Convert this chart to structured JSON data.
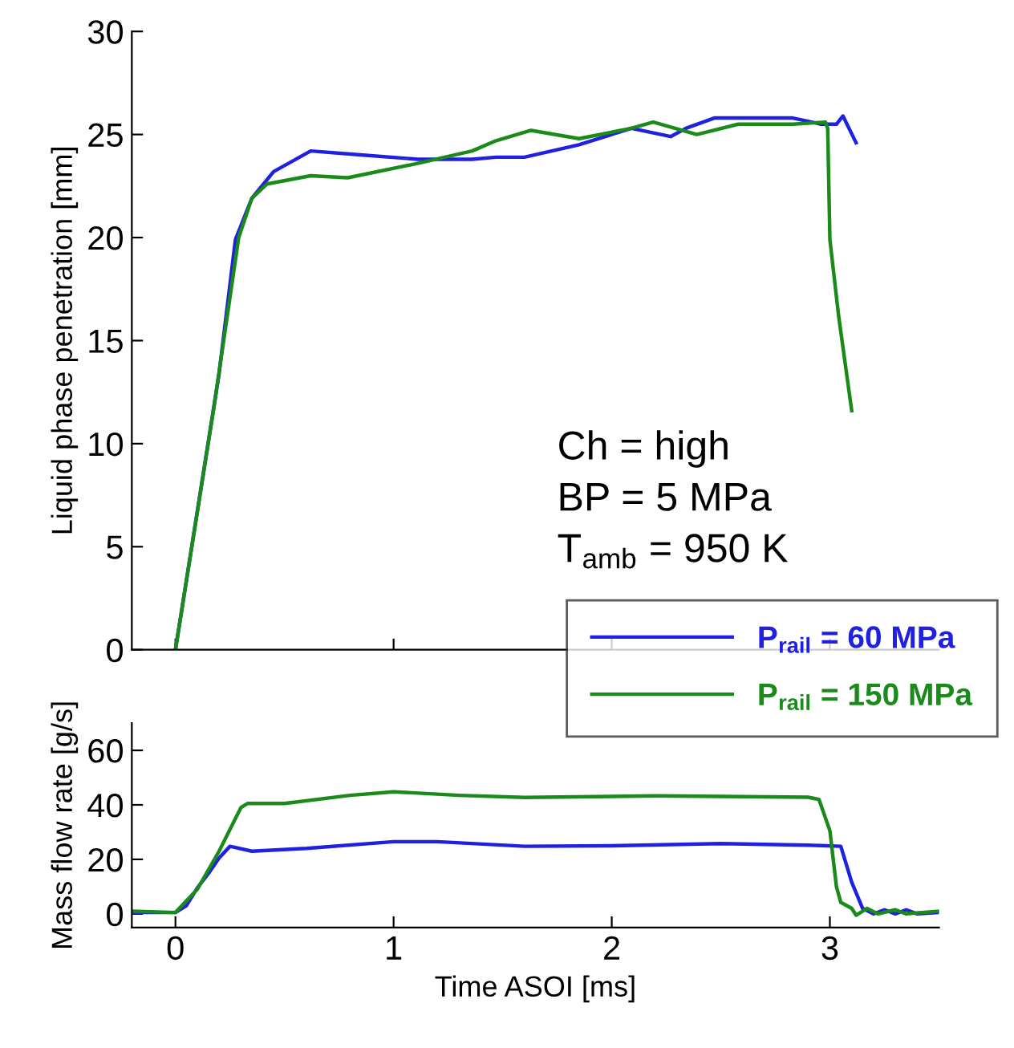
{
  "chart_data": [
    {
      "type": "line",
      "ylabel": "Liquid phase penetration [mm]",
      "xlim": [
        -0.2,
        3.5
      ],
      "xticks": [
        0,
        1,
        2,
        3
      ],
      "ylim": [
        0,
        30
      ],
      "yticks": [
        0,
        5,
        10,
        15,
        20,
        25,
        30
      ],
      "tick_labels": "y",
      "grid": false,
      "legend": "bottom right",
      "marker": "none",
      "line_style": "solid",
      "annotations": [
        "Ch = high",
        "BP = 5 MPa",
        "T$_{amb}$ = 950 K"
      ],
      "series": [
        {
          "name": "P$_{rail}$ = 60 MPa",
          "color": "#2020e0",
          "x": [
            0,
            0.2,
            0.275,
            0.35,
            0.45,
            0.62,
            0.86,
            1.11,
            1.36,
            1.47,
            1.6,
            1.85,
            2.09,
            2.27,
            2.34,
            2.47,
            2.83,
            2.96,
            3.03,
            3.06,
            3.12
          ],
          "values": [
            0,
            13.4,
            19.9,
            21.9,
            23.2,
            24.2,
            24.0,
            23.8,
            23.8,
            23.9,
            23.9,
            24.5,
            25.3,
            24.9,
            25.3,
            25.8,
            25.8,
            25.5,
            25.5,
            25.9,
            24.6
          ]
        },
        {
          "name": "P$_{rail}$ = 150 MPa",
          "color": "#1a8a1a",
          "x": [
            0,
            0.177,
            0.29,
            0.35,
            0.42,
            0.62,
            0.79,
            1.11,
            1.36,
            1.47,
            1.63,
            1.85,
            2.09,
            2.19,
            2.29,
            2.39,
            2.58,
            2.83,
            2.98,
            2.99,
            3.0,
            3.04,
            3.1
          ],
          "values": [
            0,
            11.8,
            20.0,
            21.9,
            22.6,
            23.0,
            22.9,
            23.6,
            24.2,
            24.7,
            25.2,
            24.8,
            25.3,
            25.6,
            25.3,
            25.0,
            25.5,
            25.5,
            25.6,
            25.3,
            19.9,
            16.2,
            11.6
          ]
        }
      ]
    },
    {
      "type": "line",
      "xlabel": "Time ASOI [ms]",
      "ylabel": "Mass flow rate [g/s]",
      "xlim": [
        -0.2,
        3.5
      ],
      "xticks": [
        0,
        1,
        2,
        3
      ],
      "ylim": [
        -5,
        70
      ],
      "yticks": [
        0,
        20,
        40,
        60
      ],
      "grid": false,
      "marker": "none",
      "line_style": "solid",
      "series": [
        {
          "color": "#2020e0",
          "x": [
            -0.2,
            -0.1,
            0,
            0.05,
            0.1,
            0.15,
            0.2,
            0.25,
            0.35,
            0.6,
            1.0,
            1.2,
            1.6,
            2.0,
            2.5,
            2.9,
            3.05,
            3.1,
            3.15,
            3.2,
            3.25,
            3.3,
            3.35,
            3.4,
            3.5
          ],
          "values": [
            0.5,
            0.5,
            0.5,
            3,
            9.5,
            14.7,
            20.5,
            24.8,
            23,
            24,
            26.5,
            26.5,
            24.8,
            25,
            25.8,
            25.2,
            24.8,
            11.6,
            2,
            0,
            1.5,
            0,
            1.5,
            0,
            0.5
          ]
        },
        {
          "color": "#1a8a1a",
          "x": [
            -0.2,
            0,
            0.1,
            0.2,
            0.3,
            0.33,
            0.5,
            0.8,
            1.0,
            1.3,
            1.6,
            2.2,
            2.9,
            2.95,
            3.0,
            3.03,
            3.05,
            3.1,
            3.12,
            3.17,
            3.22,
            3.3,
            3.35,
            3.5
          ],
          "values": [
            1,
            0.5,
            9,
            23,
            39,
            40.5,
            40.5,
            43.5,
            44.8,
            43.5,
            42.7,
            43.3,
            42.8,
            42,
            30.5,
            10,
            4.2,
            2,
            -0.5,
            2,
            0,
            1.5,
            0,
            1
          ]
        }
      ]
    }
  ]
}
